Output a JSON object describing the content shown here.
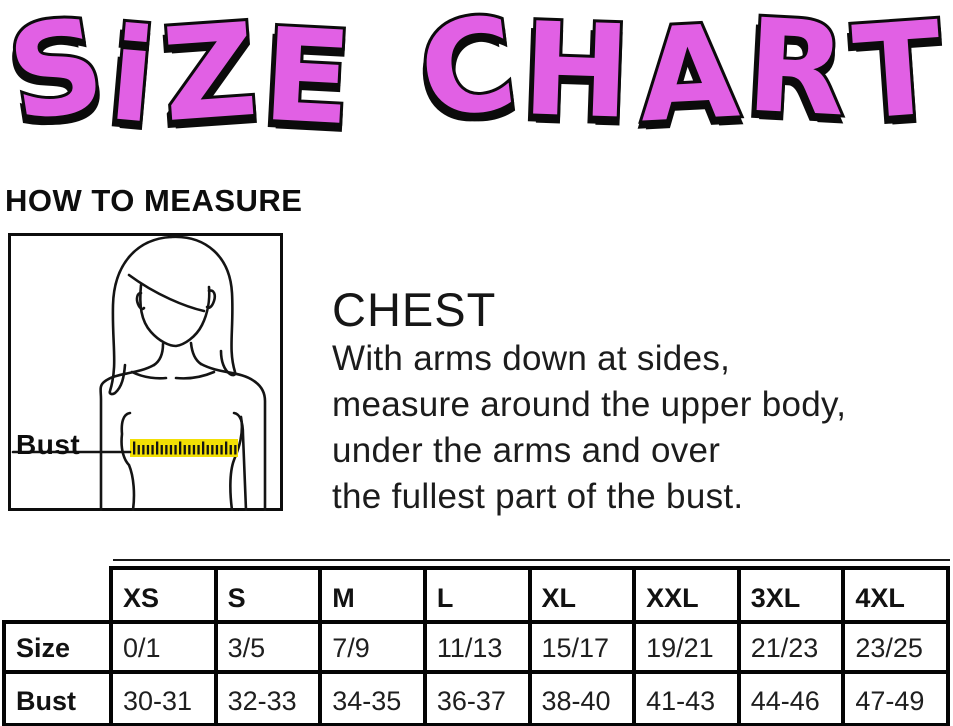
{
  "title": {
    "text": "SiZE CHART",
    "fill_color": "#e160e4",
    "outline_color": "#0b0b0b"
  },
  "how_to_measure": {
    "heading": "HOW TO MEASURE"
  },
  "measure_diagram": {
    "label": "Bust",
    "tape_color": "#f2df04"
  },
  "chest": {
    "heading": "CHEST",
    "line1": "With arms down at sides,",
    "line2": "measure around the upper body,",
    "line3": "under the arms and over",
    "line4": "the fullest part of the bust."
  },
  "size_table": {
    "column_headers": [
      "XS",
      "S",
      "M",
      "L",
      "XL",
      "XXL",
      "3XL",
      "4XL"
    ],
    "rows": [
      {
        "label": "Size",
        "values": [
          "0/1",
          "3/5",
          "7/9",
          "11/13",
          "15/17",
          "19/21",
          "21/23",
          "23/25"
        ]
      },
      {
        "label": "Bust",
        "values": [
          "30-31",
          "32-33",
          "34-35",
          "36-37",
          "38-40",
          "41-43",
          "44-46",
          "47-49"
        ]
      }
    ]
  }
}
